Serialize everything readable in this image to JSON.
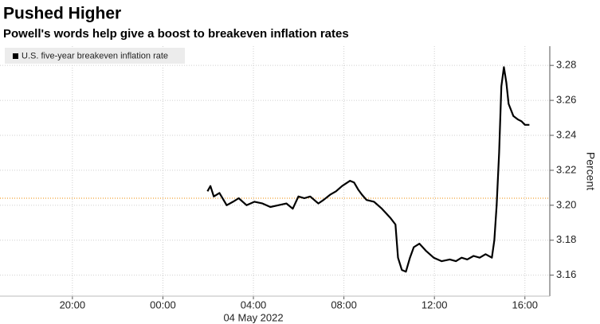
{
  "chart_data": {
    "type": "line",
    "title": "Pushed Higher",
    "subtitle": "Powell's words help give a boost to breakeven inflation rates",
    "y_label": "Percent",
    "date_label": "04 May 2022",
    "x": [
      1.97,
      2.1,
      2.25,
      2.5,
      2.82,
      3.1,
      3.35,
      3.7,
      4.05,
      4.4,
      4.75,
      5.1,
      5.46,
      5.74,
      5.99,
      6.25,
      6.51,
      6.87,
      7.1,
      7.39,
      7.65,
      7.92,
      8.27,
      8.45,
      8.63,
      8.8,
      9.0,
      9.33,
      9.68,
      10.04,
      10.28,
      10.39,
      10.56,
      10.74,
      10.92,
      11.09,
      11.34,
      11.62,
      11.97,
      12.32,
      12.68,
      12.95,
      13.2,
      13.45,
      13.73,
      14.0,
      14.26,
      14.54,
      14.65,
      14.75,
      14.86,
      14.96,
      15.07,
      15.18,
      15.28,
      15.49,
      15.7,
      15.85,
      16.0,
      16.2
    ],
    "series": [
      {
        "name": "U.S. five-year breakeven inflation rate",
        "color": "#000000",
        "values": [
          3.208,
          3.211,
          3.205,
          3.207,
          3.2,
          3.202,
          3.204,
          3.2,
          3.202,
          3.201,
          3.199,
          3.2,
          3.201,
          3.198,
          3.205,
          3.204,
          3.205,
          3.201,
          3.203,
          3.206,
          3.208,
          3.211,
          3.214,
          3.213,
          3.209,
          3.206,
          3.203,
          3.202,
          3.198,
          3.193,
          3.189,
          3.17,
          3.163,
          3.162,
          3.17,
          3.176,
          3.178,
          3.174,
          3.17,
          3.168,
          3.169,
          3.168,
          3.17,
          3.169,
          3.171,
          3.17,
          3.172,
          3.17,
          3.18,
          3.2,
          3.23,
          3.268,
          3.279,
          3.27,
          3.258,
          3.251,
          3.249,
          3.248,
          3.246,
          3.246
        ]
      }
    ],
    "reference_line": {
      "value": 3.204,
      "color": "#f0a030"
    },
    "xlim": [
      -7.2,
      17.1
    ],
    "ylim": [
      3.148,
      3.291
    ],
    "xticks": [
      {
        "value": -4,
        "label": "20:00"
      },
      {
        "value": 0,
        "label": "00:00"
      },
      {
        "value": 4,
        "label": "04:00"
      },
      {
        "value": 8,
        "label": "08:00"
      },
      {
        "value": 12,
        "label": "12:00"
      },
      {
        "value": 16,
        "label": "16:00"
      }
    ],
    "yticks": [
      3.16,
      3.18,
      {
        "value": 3.2,
        "label": "3.20"
      },
      3.22,
      3.24,
      3.26,
      3.28
    ],
    "grid": true,
    "legend_position": "upper left"
  }
}
